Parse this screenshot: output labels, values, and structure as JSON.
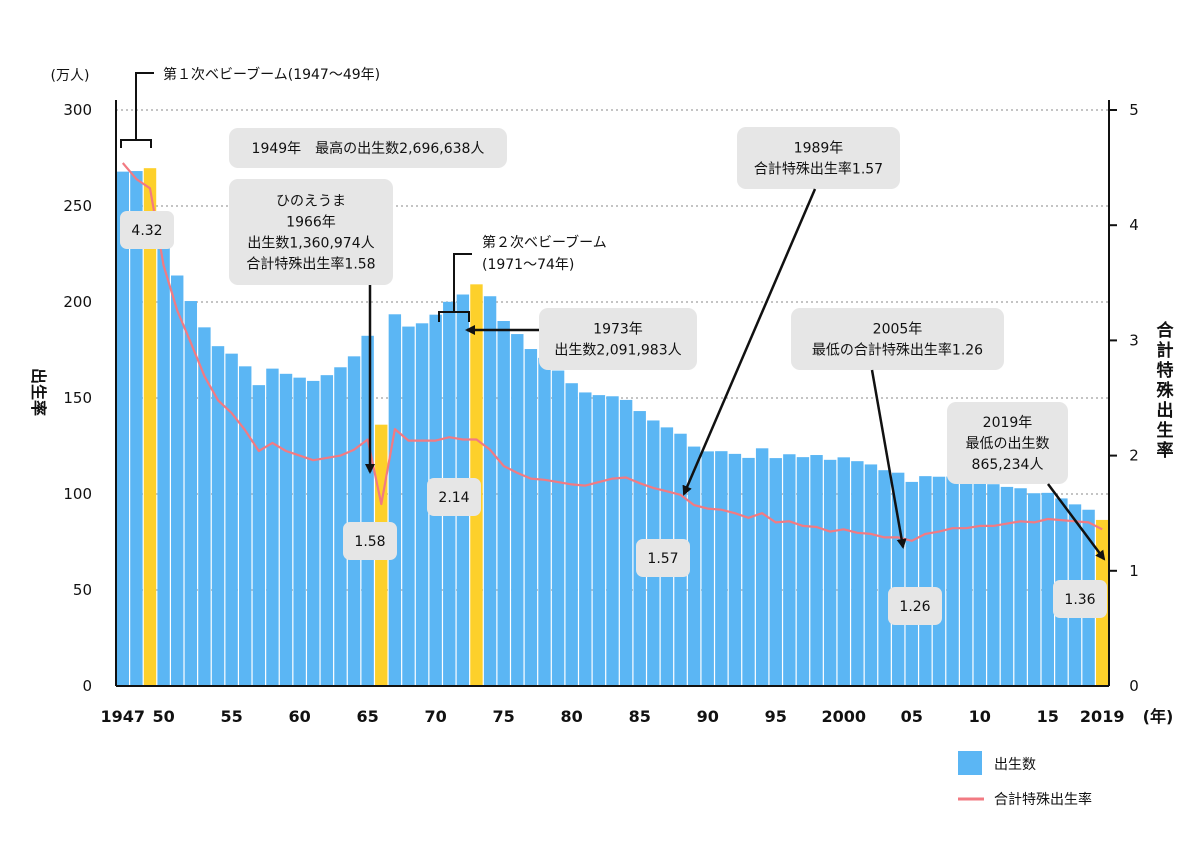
{
  "chart_data": {
    "type": "bar",
    "x_axis": {
      "tick_labels": [
        "1947",
        "50",
        "55",
        "60",
        "65",
        "70",
        "75",
        "80",
        "85",
        "90",
        "95",
        "2000",
        "05",
        "10",
        "15",
        "2019"
      ],
      "unit": "(年)"
    },
    "y_left": {
      "label": "出生率",
      "unit": "(万人)",
      "ticks": [
        "0",
        "50",
        "100",
        "150",
        "200",
        "250",
        "300"
      ],
      "ylim": [
        0,
        300
      ]
    },
    "y_right": {
      "label": "合計特殊出生率",
      "ticks": [
        "0",
        "1",
        "2",
        "3",
        "4",
        "5"
      ],
      "ylim": [
        0,
        5
      ]
    },
    "grid": true,
    "colors": {
      "bar": "#5bb6f4",
      "highlight": "#fdd02b",
      "line": "#f27a82"
    },
    "years": [
      1947,
      1948,
      1949,
      1950,
      1951,
      1952,
      1953,
      1954,
      1955,
      1956,
      1957,
      1958,
      1959,
      1960,
      1961,
      1962,
      1963,
      1964,
      1965,
      1966,
      1967,
      1968,
      1969,
      1970,
      1971,
      1972,
      1973,
      1974,
      1975,
      1976,
      1977,
      1978,
      1979,
      1980,
      1981,
      1982,
      1983,
      1984,
      1985,
      1986,
      1987,
      1988,
      1989,
      1990,
      1991,
      1992,
      1993,
      1994,
      1995,
      1996,
      1997,
      1998,
      1999,
      2000,
      2001,
      2002,
      2003,
      2004,
      2005,
      2006,
      2007,
      2008,
      2009,
      2010,
      2011,
      2012,
      2013,
      2014,
      2015,
      2016,
      2017,
      2018,
      2019
    ],
    "series": [
      {
        "name": "出生数",
        "type": "bar",
        "values": [
          267.9,
          268.2,
          269.7,
          233.8,
          213.8,
          200.5,
          186.8,
          177.0,
          173.1,
          166.5,
          156.7,
          165.3,
          162.6,
          160.6,
          158.9,
          161.9,
          166.0,
          171.7,
          182.4,
          136.1,
          193.6,
          187.2,
          188.9,
          193.4,
          200.1,
          203.9,
          209.2,
          203.0,
          190.1,
          183.3,
          175.5,
          170.9,
          164.3,
          157.7,
          152.9,
          151.5,
          150.9,
          149.0,
          143.2,
          138.3,
          134.7,
          131.4,
          124.7,
          122.2,
          122.3,
          120.9,
          118.8,
          123.8,
          118.7,
          120.7,
          119.2,
          120.3,
          117.8,
          119.1,
          117.1,
          115.4,
          112.4,
          111.1,
          106.3,
          109.3,
          109.0,
          109.1,
          107.0,
          107.1,
          105.1,
          103.7,
          103.0,
          100.4,
          100.6,
          97.7,
          94.6,
          91.8,
          86.5
        ]
      },
      {
        "name": "合計特殊出生率",
        "type": "line",
        "values": [
          4.54,
          4.4,
          4.32,
          3.65,
          3.26,
          2.98,
          2.69,
          2.48,
          2.37,
          2.22,
          2.04,
          2.11,
          2.04,
          2.0,
          1.96,
          1.98,
          2.0,
          2.05,
          2.14,
          1.58,
          2.23,
          2.13,
          2.13,
          2.13,
          2.16,
          2.14,
          2.14,
          2.05,
          1.91,
          1.85,
          1.8,
          1.79,
          1.77,
          1.75,
          1.74,
          1.77,
          1.8,
          1.81,
          1.76,
          1.72,
          1.69,
          1.66,
          1.57,
          1.54,
          1.53,
          1.5,
          1.46,
          1.5,
          1.42,
          1.43,
          1.39,
          1.38,
          1.34,
          1.36,
          1.33,
          1.32,
          1.29,
          1.29,
          1.26,
          1.32,
          1.34,
          1.37,
          1.37,
          1.39,
          1.39,
          1.41,
          1.43,
          1.42,
          1.45,
          1.44,
          1.43,
          1.42,
          1.36
        ]
      }
    ],
    "highlight_years": [
      1949,
      1966,
      1973,
      2019
    ],
    "rate_labels": [
      {
        "year": 1949,
        "text": "4.32"
      },
      {
        "year": 1966,
        "text": "1.58"
      },
      {
        "year": 1973,
        "text": "2.14"
      },
      {
        "year": 1989,
        "text": "1.57"
      },
      {
        "year": 2005,
        "text": "1.26"
      },
      {
        "year": 2019,
        "text": "1.36"
      }
    ],
    "annotations": [
      {
        "id": "boom1",
        "lines": [
          "第１次ベビーブーム(1947〜49年)"
        ]
      },
      {
        "id": "max1949",
        "lines": [
          "1949年　最高の出生数2,696,638人"
        ]
      },
      {
        "id": "hinoe",
        "lines": [
          "ひのえうま",
          "1966年",
          "出生数1,360,974人",
          "合計特殊出生率1.58"
        ]
      },
      {
        "id": "boom2",
        "lines": [
          "第２次ベビーブーム",
          "(1971〜74年)"
        ]
      },
      {
        "id": "y1973",
        "lines": [
          "1973年",
          "出生数2,091,983人"
        ]
      },
      {
        "id": "y1989",
        "lines": [
          "1989年",
          "合計特殊出生率1.57"
        ]
      },
      {
        "id": "y2005",
        "lines": [
          "2005年",
          "最低の合計特殊出生率1.26"
        ]
      },
      {
        "id": "y2019",
        "lines": [
          "2019年",
          "最低の出生数",
          "865,234人"
        ]
      }
    ],
    "legend": [
      {
        "kind": "bar",
        "label": "出生数"
      },
      {
        "kind": "line",
        "label": "合計特殊出生率"
      }
    ]
  }
}
